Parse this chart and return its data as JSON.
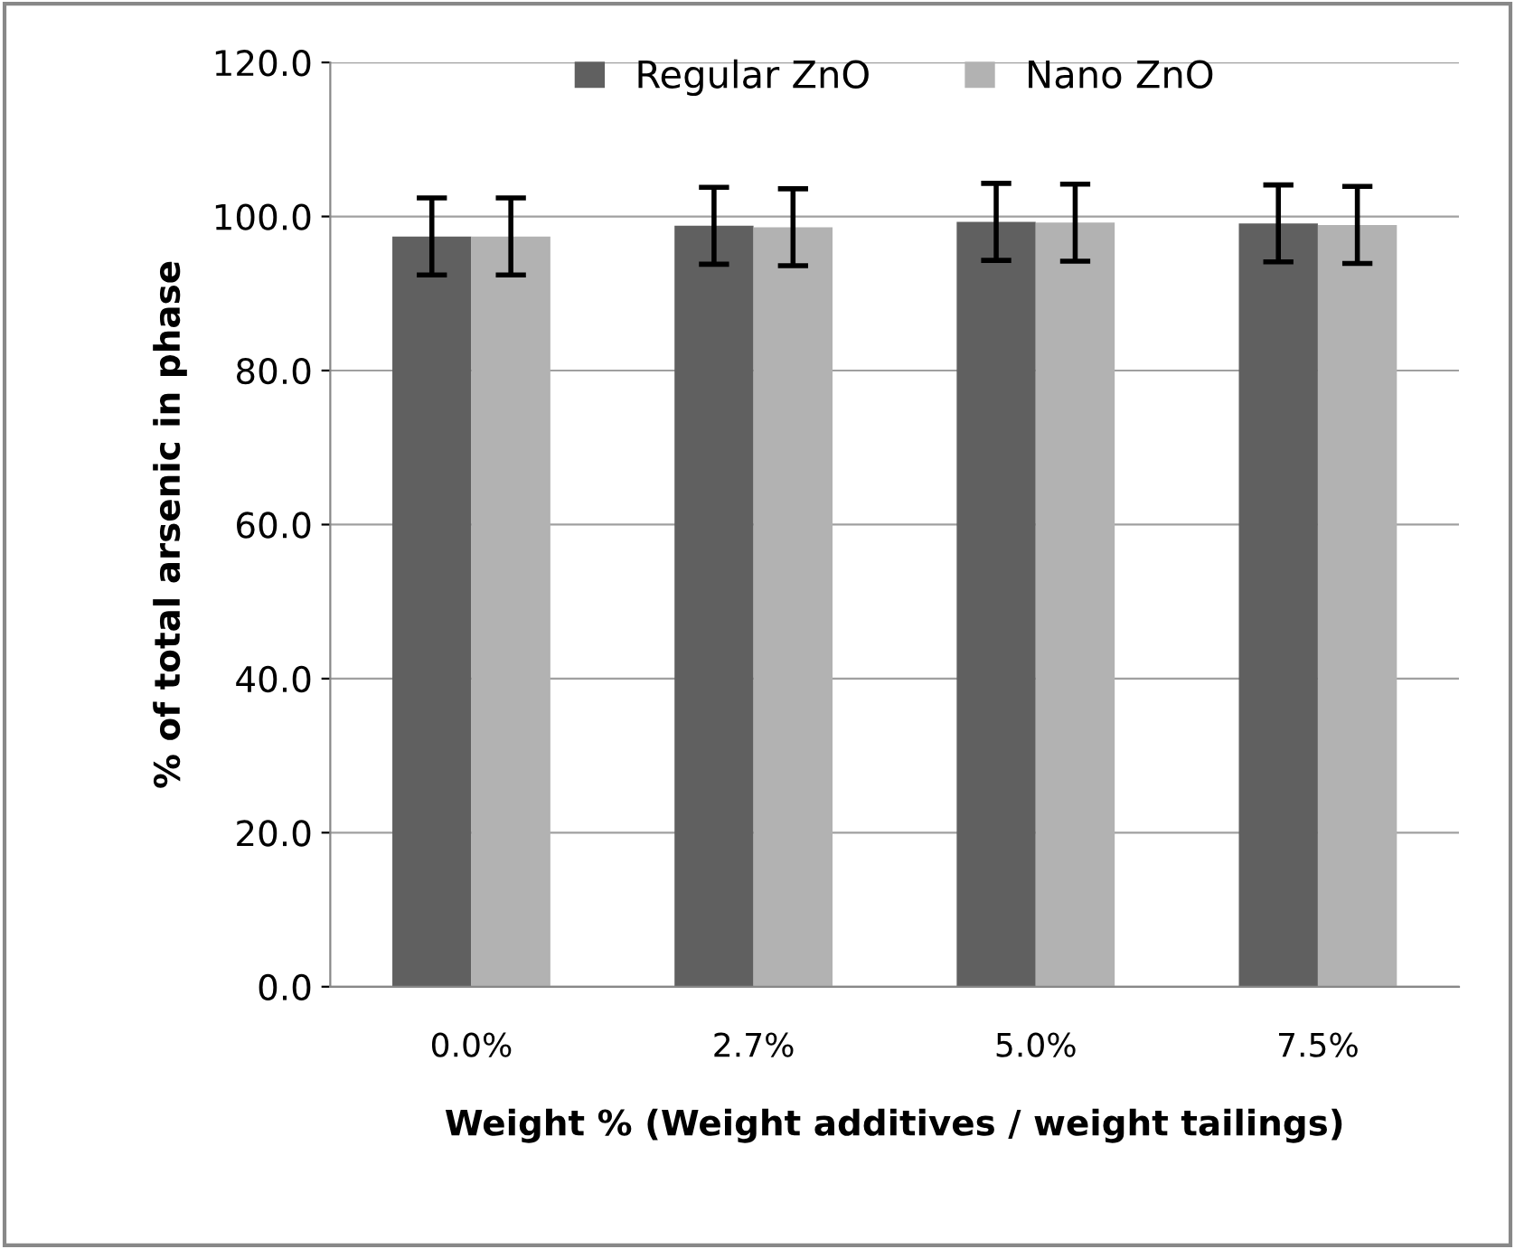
{
  "chart_data": {
    "type": "bar",
    "xlabel": "Weight % (Weight additives / weight tailings)",
    "ylabel": "% of total arsenic in phase",
    "categories": [
      "0.0%",
      "2.7%",
      "5.0%",
      "7.5%"
    ],
    "series": [
      {
        "name": "Regular ZnO",
        "color": "#606060",
        "values": [
          97.4,
          98.8,
          99.3,
          99.1
        ],
        "errors": [
          5,
          5,
          5,
          5
        ]
      },
      {
        "name": "Nano ZnO",
        "color": "#b2b2b2",
        "values": [
          97.4,
          98.6,
          99.2,
          98.9
        ],
        "errors": [
          5,
          5,
          5,
          5
        ]
      }
    ],
    "ylim": [
      0,
      120
    ],
    "yticks": [
      {
        "value": 0,
        "label": "0.0"
      },
      {
        "value": 20,
        "label": "20.0"
      },
      {
        "value": 40,
        "label": "40.0"
      },
      {
        "value": 60,
        "label": "60.0"
      },
      {
        "value": 80,
        "label": "80.0"
      },
      {
        "value": 100,
        "label": "100.0"
      },
      {
        "value": 120,
        "label": "120.0"
      }
    ],
    "grid": "y",
    "legend": "top"
  }
}
